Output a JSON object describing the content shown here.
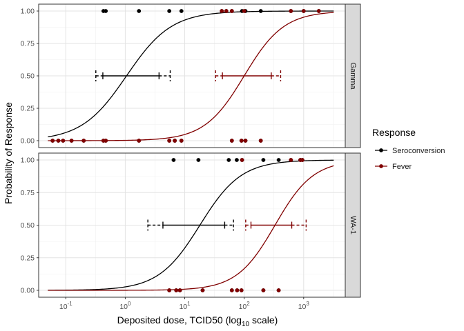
{
  "chart_data": {
    "type": "scatter",
    "xlabel": "Deposited dose, TCID50 (log",
    "xlabel_sub": "10",
    "xlabel_suffix": " scale)",
    "ylabel": "Probability of Response",
    "x_scale": "log10",
    "xlim": [
      0.035,
      5000
    ],
    "ylim": [
      0,
      1
    ],
    "x_ticks": [
      {
        "value": 0.1,
        "base": "10",
        "exp": "-1"
      },
      {
        "value": 1,
        "base": "10",
        "exp": "0"
      },
      {
        "value": 10,
        "base": "10",
        "exp": "1"
      },
      {
        "value": 100,
        "base": "10",
        "exp": "2"
      },
      {
        "value": 1000,
        "base": "10",
        "exp": "3"
      }
    ],
    "y_ticks": [
      "0.00",
      "0.25",
      "0.50",
      "0.75",
      "1.00"
    ],
    "y_tick_values": [
      0,
      0.25,
      0.5,
      0.75,
      1.0
    ],
    "grid": true,
    "legend": {
      "title": "Response",
      "placement": "right",
      "entries": [
        {
          "name": "Seroconversion",
          "color": "#000000"
        },
        {
          "name": "Fever",
          "color": "#800000"
        }
      ]
    },
    "facets": [
      {
        "label": "Gamma",
        "series": [
          {
            "name": "Seroconversion",
            "color": "#000000",
            "curve": {
              "ec50": 1.05,
              "slope": 1.15,
              "x_range": [
                0.05,
                3200
              ]
            },
            "ci_inner": [
              0.42,
              3.7
            ],
            "ci_outer": [
              0.32,
              5.7
            ],
            "points": [
              {
                "x": 0.06,
                "y": 0
              },
              {
                "x": 0.075,
                "y": 0
              },
              {
                "x": 0.09,
                "y": 0
              },
              {
                "x": 0.125,
                "y": 0
              },
              {
                "x": 0.2,
                "y": 0
              },
              {
                "x": 0.43,
                "y": 0
              },
              {
                "x": 0.47,
                "y": 0
              },
              {
                "x": 1.7,
                "y": 0
              },
              {
                "x": 5.5,
                "y": 0
              },
              {
                "x": 6.8,
                "y": 0
              },
              {
                "x": 8.8,
                "y": 0
              },
              {
                "x": 62,
                "y": 0
              },
              {
                "x": 90,
                "y": 0
              },
              {
                "x": 105,
                "y": 0
              },
              {
                "x": 190,
                "y": 0
              },
              {
                "x": 0.43,
                "y": 1
              },
              {
                "x": 0.47,
                "y": 1
              },
              {
                "x": 1.7,
                "y": 1
              },
              {
                "x": 5.5,
                "y": 1
              },
              {
                "x": 8.8,
                "y": 1
              },
              {
                "x": 42,
                "y": 1
              },
              {
                "x": 50,
                "y": 1
              },
              {
                "x": 62,
                "y": 1
              },
              {
                "x": 92,
                "y": 1
              },
              {
                "x": 105,
                "y": 1
              },
              {
                "x": 190,
                "y": 1
              },
              {
                "x": 610,
                "y": 1
              },
              {
                "x": 1000,
                "y": 1
              },
              {
                "x": 1800,
                "y": 1
              }
            ]
          },
          {
            "name": "Fever",
            "color": "#800000",
            "curve": {
              "ec50": 100,
              "slope": 1.3,
              "x_range": [
                0.05,
                3200
              ]
            },
            "ci_inner": [
              43,
              285
            ],
            "ci_outer": [
              33,
              410
            ],
            "points": [
              {
                "x": 0.06,
                "y": 0
              },
              {
                "x": 0.075,
                "y": 0
              },
              {
                "x": 0.09,
                "y": 0
              },
              {
                "x": 0.125,
                "y": 0
              },
              {
                "x": 0.2,
                "y": 0
              },
              {
                "x": 0.43,
                "y": 0
              },
              {
                "x": 0.47,
                "y": 0
              },
              {
                "x": 1.7,
                "y": 0
              },
              {
                "x": 5.5,
                "y": 0
              },
              {
                "x": 6.8,
                "y": 0
              },
              {
                "x": 8.8,
                "y": 0
              },
              {
                "x": 62,
                "y": 0
              },
              {
                "x": 90,
                "y": 0
              },
              {
                "x": 105,
                "y": 0
              },
              {
                "x": 190,
                "y": 0
              },
              {
                "x": 42,
                "y": 1
              },
              {
                "x": 50,
                "y": 1
              },
              {
                "x": 62,
                "y": 1
              },
              {
                "x": 100,
                "y": 1
              },
              {
                "x": 610,
                "y": 1
              },
              {
                "x": 1000,
                "y": 1
              },
              {
                "x": 1800,
                "y": 1
              }
            ]
          }
        ]
      },
      {
        "label": "WA-1",
        "series": [
          {
            "name": "Seroconversion",
            "color": "#000000",
            "curve": {
              "ec50": 18,
              "slope": 1.25,
              "x_range": [
                0.05,
                3200
              ]
            },
            "ci_inner": [
              4.3,
              47
            ],
            "ci_outer": [
              2.4,
              66
            ],
            "points": [
              {
                "x": 5.5,
                "y": 0
              },
              {
                "x": 7.2,
                "y": 0
              },
              {
                "x": 8.3,
                "y": 0
              },
              {
                "x": 20,
                "y": 0
              },
              {
                "x": 62,
                "y": 0
              },
              {
                "x": 76,
                "y": 0
              },
              {
                "x": 90,
                "y": 0
              },
              {
                "x": 210,
                "y": 0
              },
              {
                "x": 380,
                "y": 0
              },
              {
                "x": 6.5,
                "y": 1
              },
              {
                "x": 17,
                "y": 1
              },
              {
                "x": 55,
                "y": 1
              },
              {
                "x": 75,
                "y": 1
              },
              {
                "x": 92,
                "y": 1
              },
              {
                "x": 210,
                "y": 1
              },
              {
                "x": 380,
                "y": 1
              },
              {
                "x": 610,
                "y": 1
              },
              {
                "x": 880,
                "y": 1
              },
              {
                "x": 950,
                "y": 1
              }
            ]
          },
          {
            "name": "Fever",
            "color": "#800000",
            "curve": {
              "ec50": 330,
              "slope": 1.35,
              "x_range": [
                0.05,
                3200
              ]
            },
            "ci_inner": [
              130,
              630
            ],
            "ci_outer": [
              106,
              1100
            ],
            "points": [
              {
                "x": 5.5,
                "y": 0
              },
              {
                "x": 7.2,
                "y": 0
              },
              {
                "x": 8.3,
                "y": 0
              },
              {
                "x": 20,
                "y": 0
              },
              {
                "x": 62,
                "y": 0
              },
              {
                "x": 76,
                "y": 0
              },
              {
                "x": 90,
                "y": 0
              },
              {
                "x": 210,
                "y": 0
              },
              {
                "x": 380,
                "y": 0
              },
              {
                "x": 92,
                "y": 1
              },
              {
                "x": 610,
                "y": 1
              },
              {
                "x": 880,
                "y": 1
              },
              {
                "x": 950,
                "y": 1
              }
            ]
          }
        ]
      }
    ]
  }
}
